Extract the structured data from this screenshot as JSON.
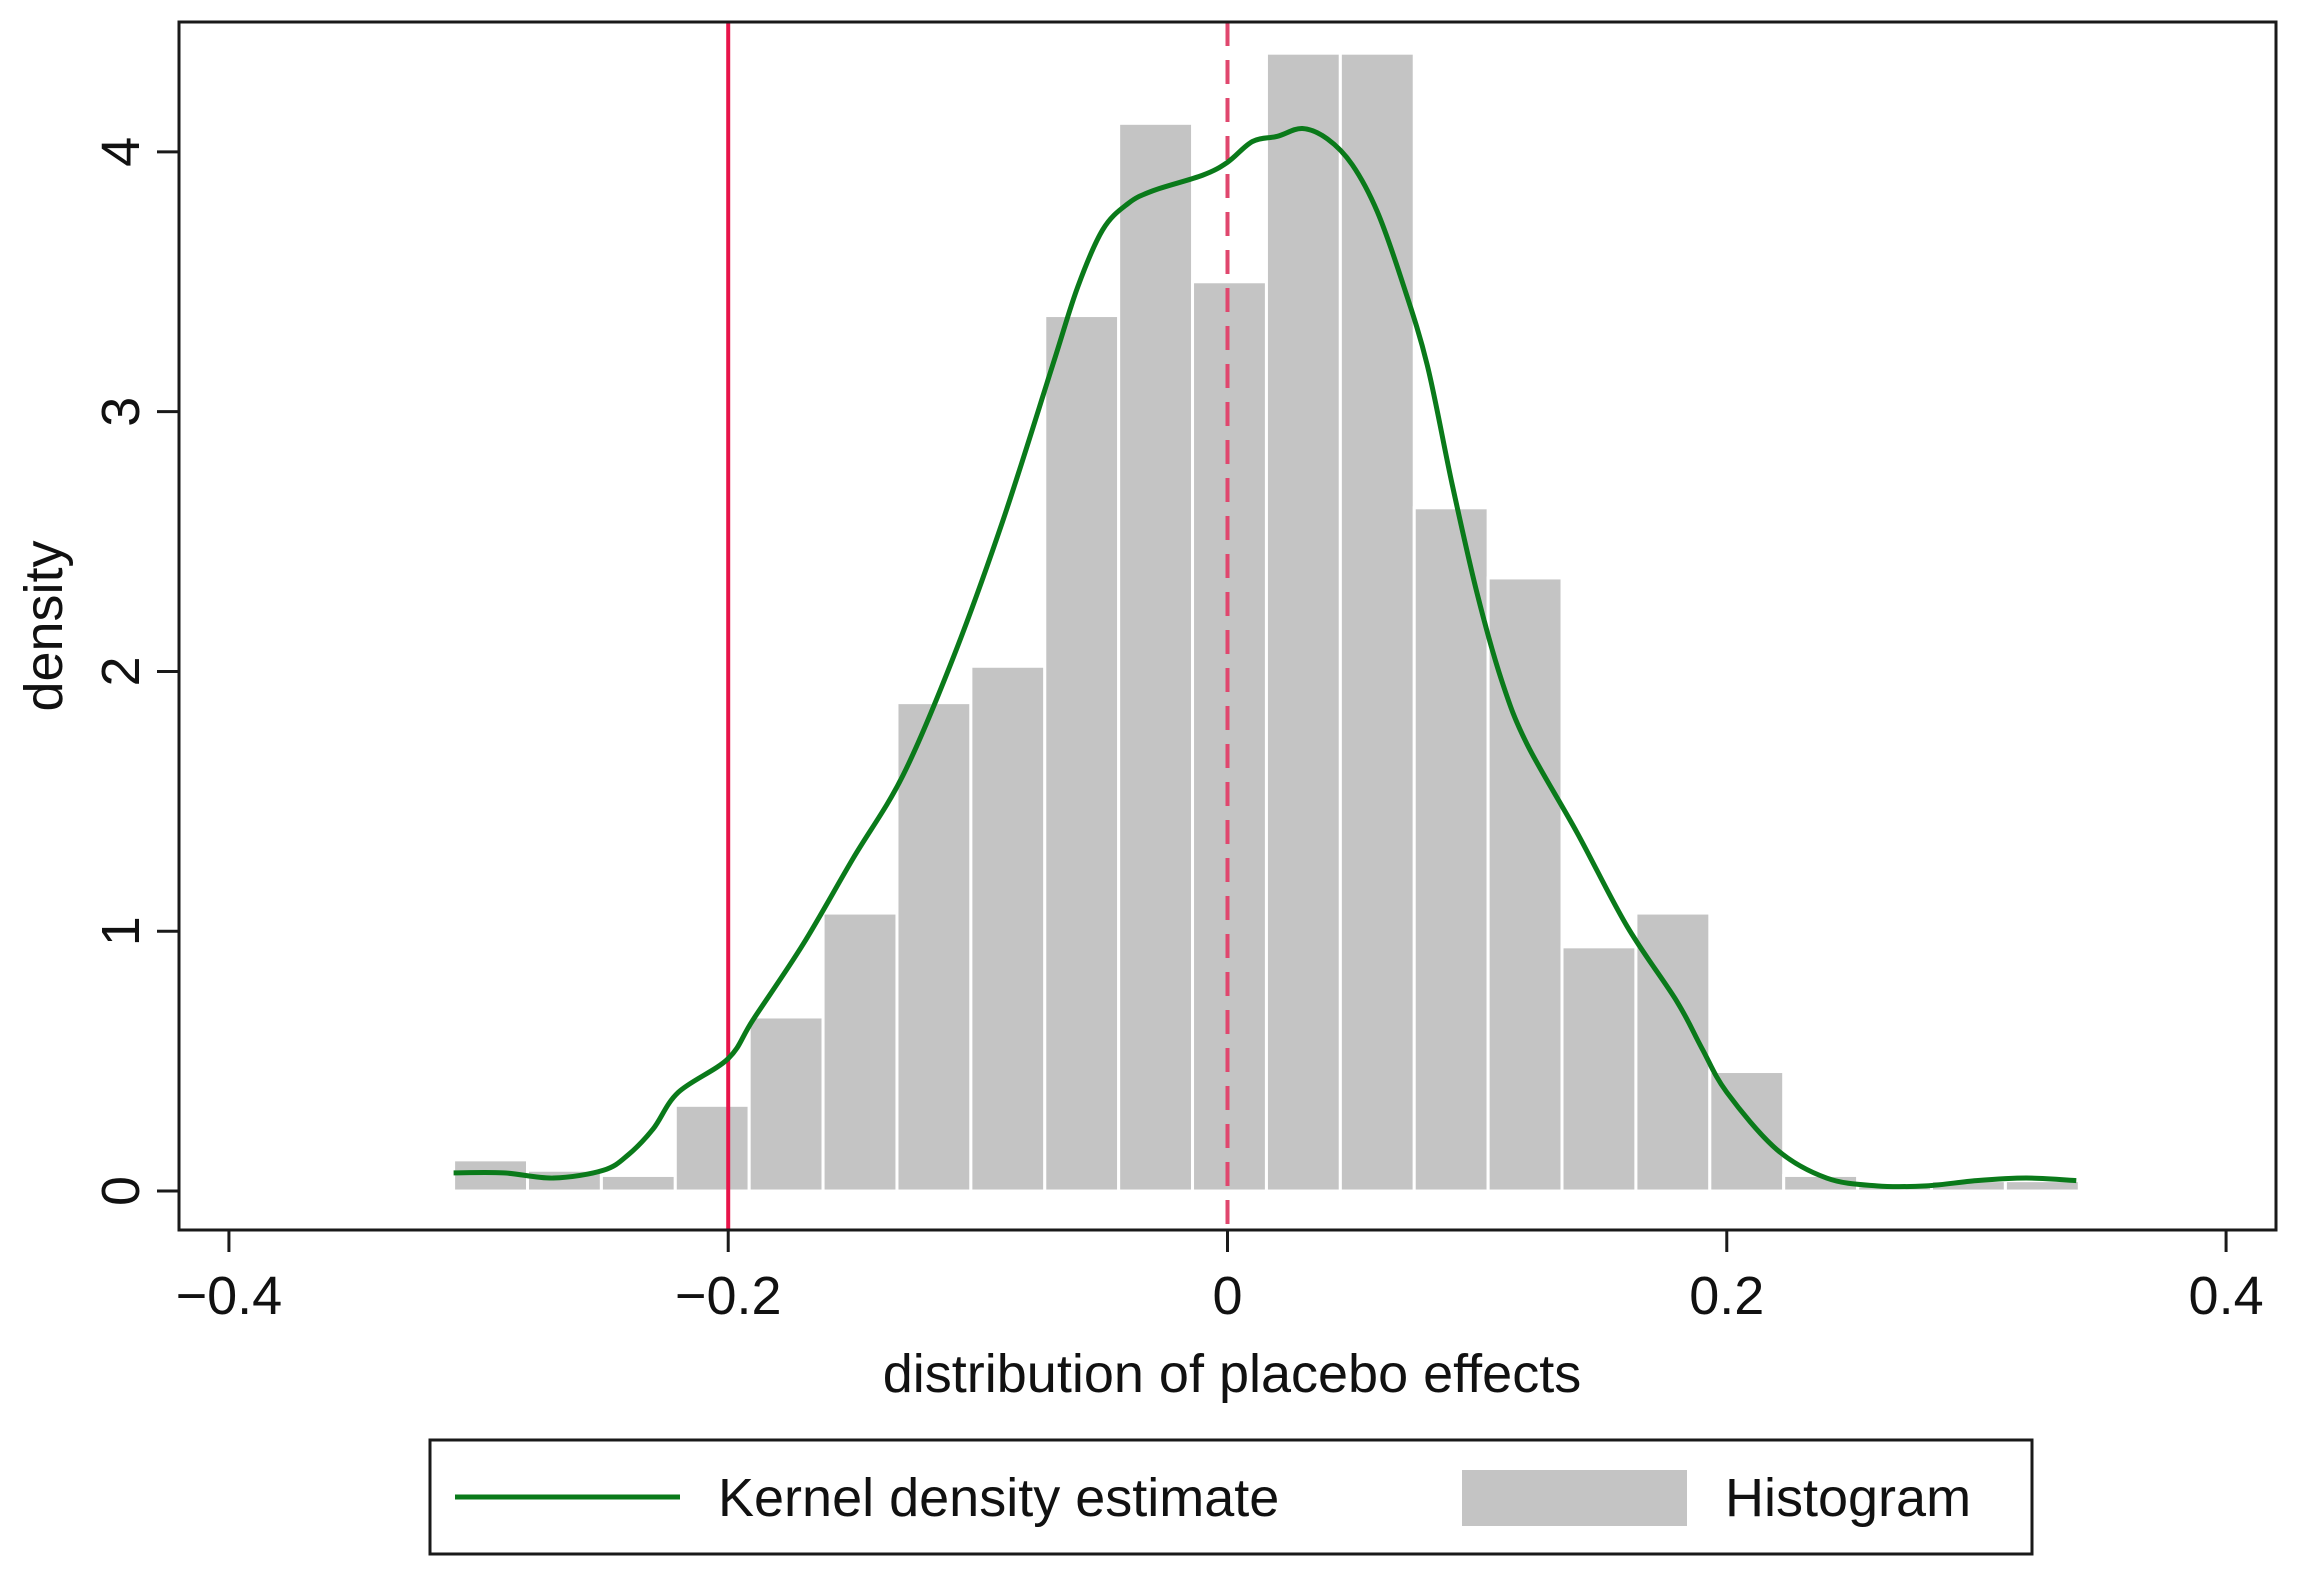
{
  "chart_data": {
    "type": "histogram-with-kde",
    "title": "",
    "xlabel": "distribution of placebo effects",
    "ylabel": "density",
    "xlim": [
      -0.42,
      0.42
    ],
    "ylim": [
      -0.15,
      4.5
    ],
    "x_ticks": [
      {
        "value": -0.4,
        "label": "−0.4"
      },
      {
        "value": -0.2,
        "label": "−0.2"
      },
      {
        "value": 0,
        "label": "0"
      },
      {
        "value": 0.2,
        "label": "0.2"
      },
      {
        "value": 0.4,
        "label": "0.4"
      }
    ],
    "y_ticks": [
      {
        "value": 0,
        "label": "0"
      },
      {
        "value": 1,
        "label": "1"
      },
      {
        "value": 2,
        "label": "2"
      },
      {
        "value": 3,
        "label": "3"
      },
      {
        "value": 4,
        "label": "4"
      }
    ],
    "histogram": {
      "name": "Histogram",
      "color": "#c4c4c4",
      "bin_width": 0.0296,
      "bin_starts": [
        -0.31,
        -0.2804,
        -0.2508,
        -0.2212,
        -0.1916,
        -0.162,
        -0.1324,
        -0.1028,
        -0.0732,
        -0.0436,
        -0.014,
        0.0156,
        0.0452,
        0.0748,
        0.1044,
        0.134,
        0.1636,
        0.1932,
        0.2228,
        0.2524,
        0.282,
        0.3116
      ],
      "densities": [
        0.12,
        0.08,
        0.06,
        0.33,
        0.67,
        1.07,
        1.88,
        2.02,
        3.37,
        4.11,
        3.5,
        4.38,
        4.38,
        2.63,
        2.36,
        0.94,
        1.07,
        0.46,
        0.06,
        0.02,
        0.04,
        0.04
      ]
    },
    "kde": {
      "name": "Kernel density estimate",
      "color": "#0a7a1a",
      "points": [
        [
          -0.31,
          0.07
        ],
        [
          -0.29,
          0.07
        ],
        [
          -0.27,
          0.05
        ],
        [
          -0.25,
          0.08
        ],
        [
          -0.24,
          0.14
        ],
        [
          -0.23,
          0.24
        ],
        [
          -0.22,
          0.38
        ],
        [
          -0.2,
          0.51
        ],
        [
          -0.19,
          0.66
        ],
        [
          -0.17,
          0.95
        ],
        [
          -0.15,
          1.28
        ],
        [
          -0.13,
          1.6
        ],
        [
          -0.11,
          2.05
        ],
        [
          -0.09,
          2.58
        ],
        [
          -0.07,
          3.18
        ],
        [
          -0.06,
          3.48
        ],
        [
          -0.05,
          3.7
        ],
        [
          -0.04,
          3.8
        ],
        [
          -0.03,
          3.85
        ],
        [
          -0.01,
          3.91
        ],
        [
          0.0,
          3.96
        ],
        [
          0.01,
          4.04
        ],
        [
          0.02,
          4.06
        ],
        [
          0.03,
          4.09
        ],
        [
          0.04,
          4.05
        ],
        [
          0.05,
          3.95
        ],
        [
          0.06,
          3.77
        ],
        [
          0.07,
          3.5
        ],
        [
          0.08,
          3.18
        ],
        [
          0.09,
          2.72
        ],
        [
          0.1,
          2.3
        ],
        [
          0.11,
          1.96
        ],
        [
          0.12,
          1.72
        ],
        [
          0.14,
          1.38
        ],
        [
          0.16,
          1.02
        ],
        [
          0.18,
          0.73
        ],
        [
          0.19,
          0.55
        ],
        [
          0.2,
          0.38
        ],
        [
          0.22,
          0.16
        ],
        [
          0.24,
          0.05
        ],
        [
          0.26,
          0.02
        ],
        [
          0.28,
          0.02
        ],
        [
          0.3,
          0.04
        ],
        [
          0.32,
          0.05
        ],
        [
          0.34,
          0.04
        ]
      ]
    },
    "reference_lines": [
      {
        "x": -0.2,
        "style": "solid",
        "color": "#e8144a"
      },
      {
        "x": 0,
        "style": "dashed",
        "color": "#e0476e"
      }
    ],
    "legend": {
      "placement": "bottom",
      "kde_label": "Kernel density estimate",
      "hist_label": "Histogram"
    }
  }
}
